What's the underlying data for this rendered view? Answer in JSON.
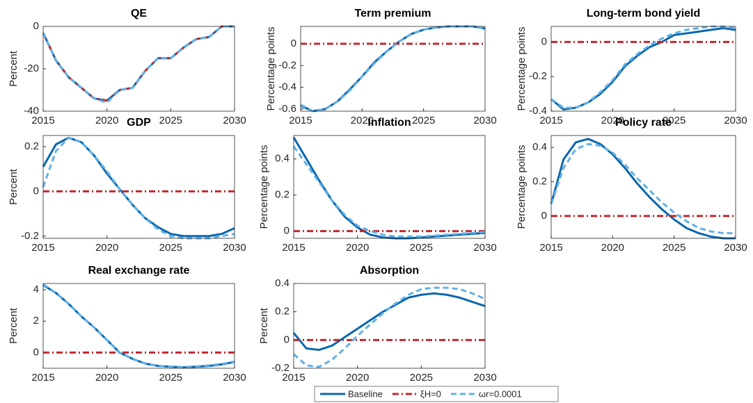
{
  "chart_data": [
    {
      "type": "line",
      "title": "QE",
      "y_label": "Percent",
      "x": [
        2015,
        2016,
        2017,
        2018,
        2019,
        2020,
        2021,
        2022,
        2023,
        2024,
        2025,
        2026,
        2027,
        2028,
        2029,
        2030
      ],
      "xlim": [
        2015,
        2030
      ],
      "xticks": [
        2015,
        2020,
        2025,
        2030
      ],
      "ylim": [
        -40,
        0
      ],
      "yticks": [
        -40,
        -20,
        0
      ],
      "series": [
        {
          "name": "Baseline",
          "color": "#0a67ad",
          "dash": "solid",
          "values": [
            -3,
            -16,
            -24,
            -29,
            -34,
            -35,
            -30,
            -29,
            -21,
            -15,
            -15,
            -10,
            -6,
            -5,
            0,
            0
          ]
        },
        {
          "name": "ξH=0",
          "color": "#c1272d",
          "dash": "dashdot",
          "values": [
            -3,
            -16,
            -24,
            -29,
            -34,
            -35,
            -30,
            -29,
            -21,
            -15,
            -15,
            -10,
            -6,
            -5,
            0,
            0
          ]
        },
        {
          "name": "ωr=0.0001",
          "color": "#5fb0e8",
          "dash": "dashed",
          "values": [
            -3,
            -16,
            -24,
            -29,
            -34,
            -36,
            -30,
            -29,
            -21,
            -15,
            -15,
            -10,
            -6,
            -5,
            0,
            0
          ]
        }
      ]
    },
    {
      "type": "line",
      "title": "Term premium",
      "y_label": "Percentage points",
      "x": [
        2015,
        2016,
        2017,
        2018,
        2019,
        2020,
        2021,
        2022,
        2023,
        2024,
        2025,
        2026,
        2027,
        2028,
        2029,
        2030
      ],
      "xlim": [
        2015,
        2030
      ],
      "xticks": [
        2015,
        2020,
        2025,
        2030
      ],
      "ylim": [
        -0.62,
        0.16
      ],
      "yticks": [
        -0.6,
        -0.4,
        -0.2,
        0
      ],
      "series": [
        {
          "color": "#0a67ad",
          "dash": "solid",
          "values": [
            -0.57,
            -0.62,
            -0.6,
            -0.53,
            -0.42,
            -0.3,
            -0.17,
            -0.07,
            0.02,
            0.09,
            0.13,
            0.15,
            0.16,
            0.16,
            0.16,
            0.14
          ]
        },
        {
          "color": "#c1272d",
          "dash": "dashdot",
          "values": [
            0,
            0,
            0,
            0,
            0,
            0,
            0,
            0,
            0,
            0,
            0,
            0,
            0,
            0,
            0,
            0
          ]
        },
        {
          "color": "#5fb0e8",
          "dash": "dashed",
          "values": [
            -0.56,
            -0.62,
            -0.6,
            -0.53,
            -0.43,
            -0.3,
            -0.18,
            -0.07,
            0.02,
            0.09,
            0.13,
            0.15,
            0.16,
            0.16,
            0.16,
            0.14
          ]
        }
      ]
    },
    {
      "type": "line",
      "title": "Long-term bond yield",
      "y_label": "Percentage points",
      "x": [
        2015,
        2016,
        2017,
        2018,
        2019,
        2020,
        2021,
        2022,
        2023,
        2024,
        2025,
        2026,
        2027,
        2028,
        2029,
        2030
      ],
      "xlim": [
        2015,
        2030
      ],
      "xticks": [
        2015,
        2020,
        2025,
        2030
      ],
      "ylim": [
        -0.4,
        0.09
      ],
      "yticks": [
        -0.4,
        -0.2,
        0
      ],
      "series": [
        {
          "color": "#0a67ad",
          "dash": "solid",
          "values": [
            -0.33,
            -0.39,
            -0.38,
            -0.35,
            -0.3,
            -0.23,
            -0.14,
            -0.08,
            -0.03,
            0,
            0.04,
            0.05,
            0.06,
            0.07,
            0.08,
            0.07
          ]
        },
        {
          "color": "#c1272d",
          "dash": "dashdot",
          "values": [
            0,
            0,
            0,
            0,
            0,
            0,
            0,
            0,
            0,
            0,
            0,
            0,
            0,
            0,
            0,
            0
          ]
        },
        {
          "color": "#5fb0e8",
          "dash": "dashed",
          "values": [
            -0.33,
            -0.38,
            -0.38,
            -0.35,
            -0.29,
            -0.22,
            -0.13,
            -0.07,
            -0.02,
            0.02,
            0.05,
            0.07,
            0.08,
            0.09,
            0.09,
            0.08
          ]
        }
      ]
    },
    {
      "type": "line",
      "title": "GDP",
      "y_label": "Percent",
      "x": [
        2015,
        2016,
        2017,
        2018,
        2019,
        2020,
        2021,
        2022,
        2023,
        2024,
        2025,
        2026,
        2027,
        2028,
        2029,
        2030
      ],
      "xlim": [
        2015,
        2030
      ],
      "xticks": [
        2015,
        2020,
        2025,
        2030
      ],
      "ylim": [
        -0.21,
        0.25
      ],
      "yticks": [
        -0.2,
        0,
        0.2
      ],
      "series": [
        {
          "color": "#0a67ad",
          "dash": "solid",
          "values": [
            0.11,
            0.21,
            0.24,
            0.22,
            0.16,
            0.08,
            0.01,
            -0.06,
            -0.12,
            -0.16,
            -0.19,
            -0.2,
            -0.2,
            -0.2,
            -0.19,
            -0.165
          ]
        },
        {
          "color": "#c1272d",
          "dash": "dashdot",
          "values": [
            0,
            0,
            0,
            0,
            0,
            0,
            0,
            0,
            0,
            0,
            0,
            0,
            0,
            0,
            0,
            0
          ]
        },
        {
          "color": "#5fb0e8",
          "dash": "dashed",
          "values": [
            0.02,
            0.18,
            0.24,
            0.22,
            0.16,
            0.09,
            0.01,
            -0.06,
            -0.12,
            -0.17,
            -0.2,
            -0.21,
            -0.21,
            -0.21,
            -0.2,
            -0.19
          ]
        }
      ]
    },
    {
      "type": "line",
      "title": "Inflation",
      "y_label": "Percentage points",
      "x": [
        2015,
        2016,
        2017,
        2018,
        2019,
        2020,
        2021,
        2022,
        2023,
        2024,
        2025,
        2026,
        2027,
        2028,
        2029,
        2030
      ],
      "xlim": [
        2015,
        2030
      ],
      "xticks": [
        2015,
        2020,
        2025,
        2030
      ],
      "ylim": [
        -0.04,
        0.53
      ],
      "yticks": [
        0,
        0.2,
        0.4
      ],
      "series": [
        {
          "color": "#0a67ad",
          "dash": "solid",
          "values": [
            0.52,
            0.4,
            0.28,
            0.17,
            0.08,
            0.02,
            -0.02,
            -0.035,
            -0.04,
            -0.04,
            -0.035,
            -0.03,
            -0.025,
            -0.02,
            -0.015,
            -0.01
          ]
        },
        {
          "color": "#c1272d",
          "dash": "dashdot",
          "values": [
            0,
            0,
            0,
            0,
            0,
            0,
            0,
            0,
            0,
            0,
            0,
            0,
            0,
            0,
            0,
            0
          ]
        },
        {
          "color": "#5fb0e8",
          "dash": "dashed",
          "values": [
            0.47,
            0.37,
            0.27,
            0.17,
            0.09,
            0.03,
            0,
            -0.02,
            -0.03,
            -0.03,
            -0.03,
            -0.025,
            -0.02,
            -0.015,
            -0.01,
            -0.005
          ]
        }
      ]
    },
    {
      "type": "line",
      "title": "Policy rate",
      "y_label": "Percentage points",
      "x": [
        2015,
        2016,
        2017,
        2018,
        2019,
        2020,
        2021,
        2022,
        2023,
        2024,
        2025,
        2026,
        2027,
        2028,
        2029,
        2030
      ],
      "xlim": [
        2015,
        2030
      ],
      "xticks": [
        2015,
        2020,
        2025,
        2030
      ],
      "ylim": [
        -0.13,
        0.47
      ],
      "yticks": [
        0,
        0.2,
        0.4
      ],
      "series": [
        {
          "color": "#0a67ad",
          "dash": "solid",
          "values": [
            0.07,
            0.33,
            0.43,
            0.45,
            0.42,
            0.36,
            0.28,
            0.19,
            0.11,
            0.04,
            -0.02,
            -0.07,
            -0.1,
            -0.12,
            -0.13,
            -0.13
          ]
        },
        {
          "color": "#c1272d",
          "dash": "dashdot",
          "values": [
            0,
            0,
            0,
            0,
            0,
            0,
            0,
            0,
            0,
            0,
            0,
            0,
            0,
            0,
            0,
            0
          ]
        },
        {
          "color": "#5fb0e8",
          "dash": "dashed",
          "values": [
            0.07,
            0.28,
            0.39,
            0.42,
            0.41,
            0.37,
            0.3,
            0.22,
            0.15,
            0.08,
            0.02,
            -0.03,
            -0.07,
            -0.09,
            -0.1,
            -0.1
          ]
        }
      ]
    },
    {
      "type": "line",
      "title": "Real exchange rate",
      "y_label": "Percent",
      "x": [
        2015,
        2016,
        2017,
        2018,
        2019,
        2020,
        2021,
        2022,
        2023,
        2024,
        2025,
        2026,
        2027,
        2028,
        2029,
        2030
      ],
      "xlim": [
        2015,
        2030
      ],
      "xticks": [
        2015,
        2020,
        2025,
        2030
      ],
      "ylim": [
        -1,
        4.4
      ],
      "yticks": [
        0,
        2,
        4
      ],
      "series": [
        {
          "color": "#0a67ad",
          "dash": "solid",
          "values": [
            4.3,
            3.8,
            3.1,
            2.3,
            1.6,
            0.8,
            0,
            -0.4,
            -0.7,
            -0.85,
            -0.9,
            -0.95,
            -0.9,
            -0.85,
            -0.75,
            -0.6
          ]
        },
        {
          "color": "#c1272d",
          "dash": "dashdot",
          "values": [
            0,
            0,
            0,
            0,
            0,
            0,
            0,
            0,
            0,
            0,
            0,
            0,
            0,
            0,
            0,
            0
          ]
        },
        {
          "color": "#5fb0e8",
          "dash": "dashed",
          "values": [
            4.35,
            3.8,
            3.1,
            2.3,
            1.6,
            0.8,
            0,
            -0.4,
            -0.7,
            -0.85,
            -0.9,
            -0.92,
            -0.88,
            -0.82,
            -0.72,
            -0.58
          ]
        }
      ]
    },
    {
      "type": "line",
      "title": "Absorption",
      "y_label": "Percent",
      "x": [
        2015,
        2016,
        2017,
        2018,
        2019,
        2020,
        2021,
        2022,
        2023,
        2024,
        2025,
        2026,
        2027,
        2028,
        2029,
        2030
      ],
      "xlim": [
        2015,
        2030
      ],
      "xticks": [
        2015,
        2020,
        2025,
        2030
      ],
      "ylim": [
        -0.2,
        0.4
      ],
      "yticks": [
        -0.2,
        0,
        0.2,
        0.4
      ],
      "series": [
        {
          "color": "#0a67ad",
          "dash": "solid",
          "values": [
            0.05,
            -0.06,
            -0.07,
            -0.04,
            0.02,
            0.08,
            0.14,
            0.2,
            0.25,
            0.3,
            0.32,
            0.33,
            0.32,
            0.3,
            0.27,
            0.24
          ]
        },
        {
          "color": "#c1272d",
          "dash": "dashdot",
          "values": [
            0,
            0,
            0,
            0,
            0,
            0,
            0,
            0,
            0,
            0,
            0,
            0,
            0,
            0,
            0,
            0
          ]
        },
        {
          "color": "#5fb0e8",
          "dash": "dashed",
          "values": [
            -0.1,
            -0.18,
            -0.19,
            -0.14,
            -0.06,
            0.03,
            0.11,
            0.19,
            0.26,
            0.32,
            0.36,
            0.37,
            0.37,
            0.36,
            0.33,
            0.29
          ]
        }
      ]
    }
  ]
}
